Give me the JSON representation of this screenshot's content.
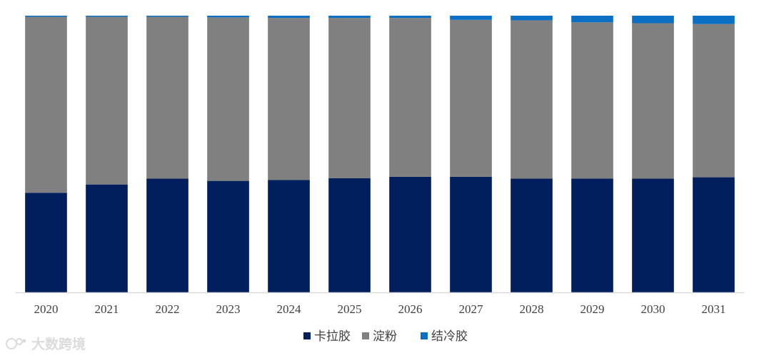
{
  "chart_data": {
    "type": "bar",
    "stacked": true,
    "normalized": true,
    "categories": [
      "2020",
      "2021",
      "2022",
      "2023",
      "2024",
      "2025",
      "2026",
      "2027",
      "2028",
      "2029",
      "2030",
      "2031"
    ],
    "series": [
      {
        "name": "卡拉胶",
        "color": "#001f5c",
        "values": [
          36.0,
          39.0,
          41.1,
          40.3,
          40.6,
          41.3,
          41.8,
          41.8,
          41.1,
          41.1,
          41.1,
          41.6
        ]
      },
      {
        "name": "淀粉",
        "color": "#808080",
        "values": [
          63.6,
          60.6,
          58.5,
          59.1,
          58.6,
          57.9,
          57.4,
          56.7,
          57.2,
          56.5,
          56.2,
          55.4
        ]
      },
      {
        "name": "结冷胶",
        "color": "#0b6fc4",
        "values": [
          0.4,
          0.4,
          0.4,
          0.6,
          0.8,
          0.8,
          0.8,
          1.5,
          1.7,
          2.4,
          2.7,
          3.0
        ]
      }
    ],
    "ylim": [
      0,
      100
    ],
    "grid": false,
    "legend_position": "bottom"
  },
  "watermark": {
    "text": "大数跨境",
    "icon": "brand-logo-icon"
  }
}
